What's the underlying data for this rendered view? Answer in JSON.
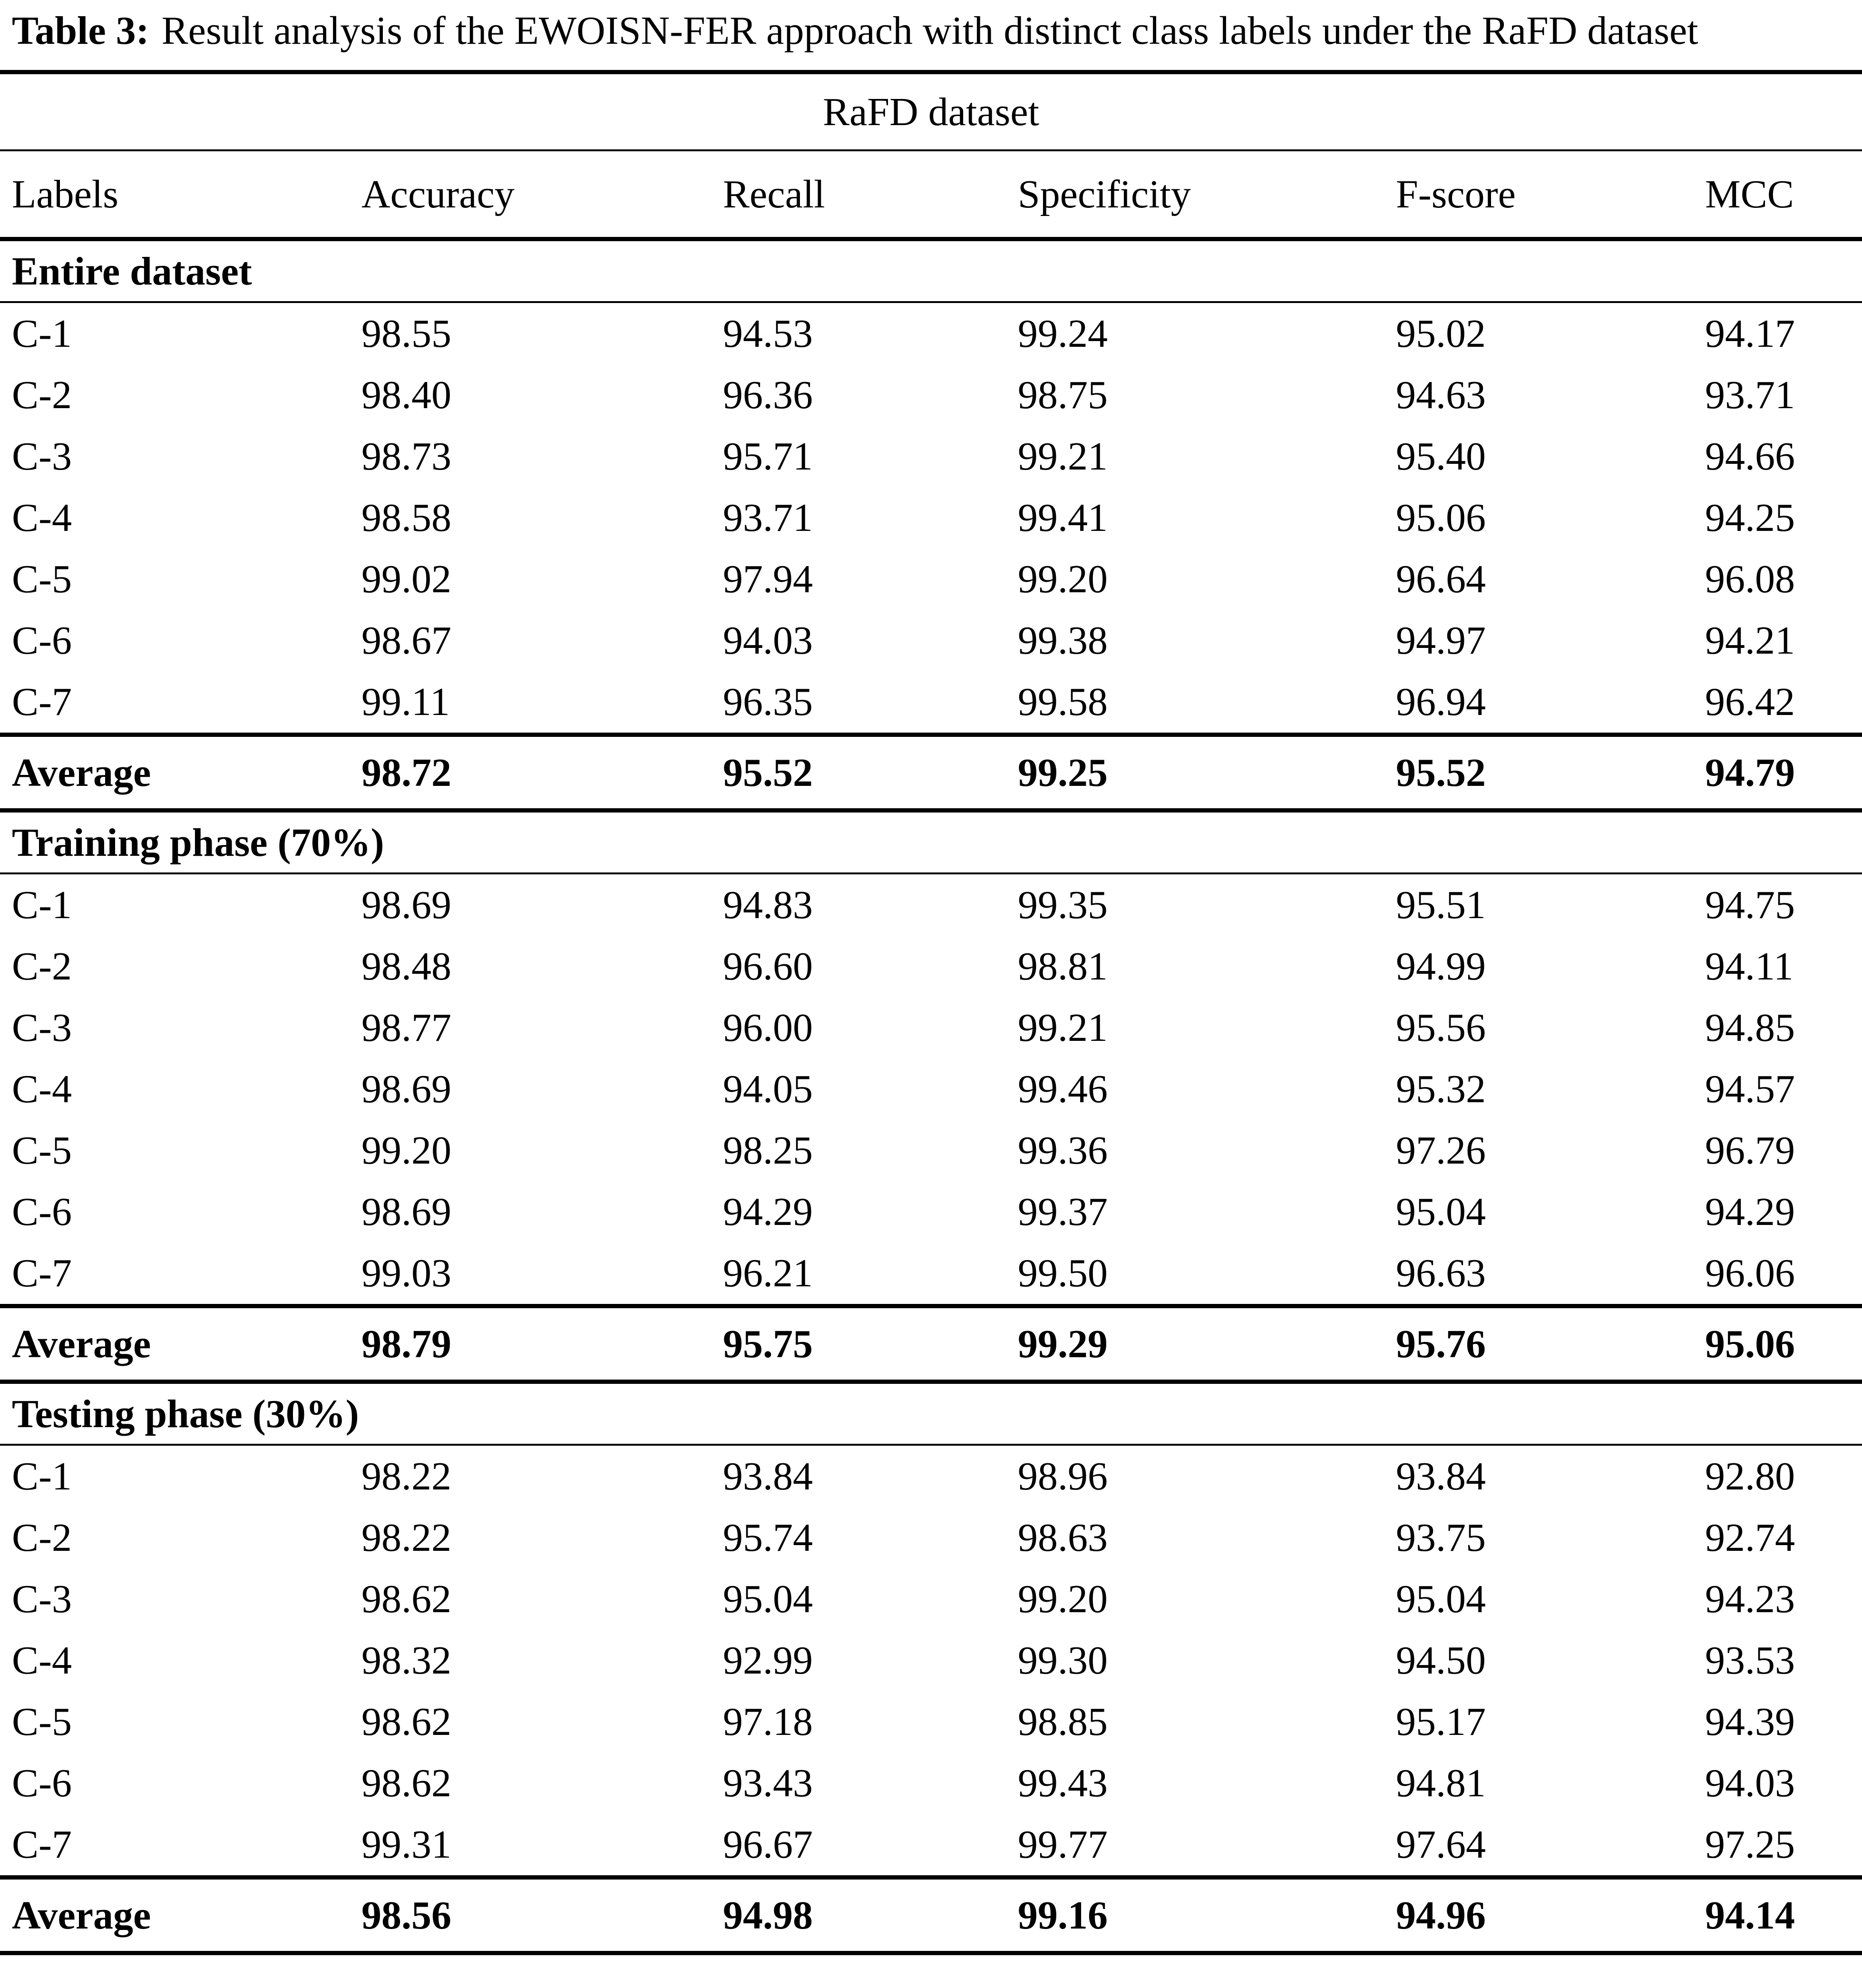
{
  "title": {
    "label": "Table 3:",
    "text": "Result analysis of the EWOISN-FER approach with distinct class labels under the RaFD dataset"
  },
  "table": {
    "dataset_header": "RaFD dataset",
    "columns": [
      "Labels",
      "Accuracy",
      "Recall",
      "Specificity",
      "F-score",
      "MCC"
    ],
    "sections": [
      {
        "name": "Entire dataset",
        "rows": [
          {
            "label": "C-1",
            "values": [
              "98.55",
              "94.53",
              "99.24",
              "95.02",
              "94.17"
            ]
          },
          {
            "label": "C-2",
            "values": [
              "98.40",
              "96.36",
              "98.75",
              "94.63",
              "93.71"
            ]
          },
          {
            "label": "C-3",
            "values": [
              "98.73",
              "95.71",
              "99.21",
              "95.40",
              "94.66"
            ]
          },
          {
            "label": "C-4",
            "values": [
              "98.58",
              "93.71",
              "99.41",
              "95.06",
              "94.25"
            ]
          },
          {
            "label": "C-5",
            "values": [
              "99.02",
              "97.94",
              "99.20",
              "96.64",
              "96.08"
            ]
          },
          {
            "label": "C-6",
            "values": [
              "98.67",
              "94.03",
              "99.38",
              "94.97",
              "94.21"
            ]
          },
          {
            "label": "C-7",
            "values": [
              "99.11",
              "96.35",
              "99.58",
              "96.94",
              "96.42"
            ]
          }
        ],
        "average": {
          "label": "Average",
          "values": [
            "98.72",
            "95.52",
            "99.25",
            "95.52",
            "94.79"
          ]
        }
      },
      {
        "name": "Training phase (70%)",
        "rows": [
          {
            "label": "C-1",
            "values": [
              "98.69",
              "94.83",
              "99.35",
              "95.51",
              "94.75"
            ]
          },
          {
            "label": "C-2",
            "values": [
              "98.48",
              "96.60",
              "98.81",
              "94.99",
              "94.11"
            ]
          },
          {
            "label": "C-3",
            "values": [
              "98.77",
              "96.00",
              "99.21",
              "95.56",
              "94.85"
            ]
          },
          {
            "label": "C-4",
            "values": [
              "98.69",
              "94.05",
              "99.46",
              "95.32",
              "94.57"
            ]
          },
          {
            "label": "C-5",
            "values": [
              "99.20",
              "98.25",
              "99.36",
              "97.26",
              "96.79"
            ]
          },
          {
            "label": "C-6",
            "values": [
              "98.69",
              "94.29",
              "99.37",
              "95.04",
              "94.29"
            ]
          },
          {
            "label": "C-7",
            "values": [
              "99.03",
              "96.21",
              "99.50",
              "96.63",
              "96.06"
            ]
          }
        ],
        "average": {
          "label": "Average",
          "values": [
            "98.79",
            "95.75",
            "99.29",
            "95.76",
            "95.06"
          ]
        }
      },
      {
        "name": "Testing phase (30%)",
        "rows": [
          {
            "label": "C-1",
            "values": [
              "98.22",
              "93.84",
              "98.96",
              "93.84",
              "92.80"
            ]
          },
          {
            "label": "C-2",
            "values": [
              "98.22",
              "95.74",
              "98.63",
              "93.75",
              "92.74"
            ]
          },
          {
            "label": "C-3",
            "values": [
              "98.62",
              "95.04",
              "99.20",
              "95.04",
              "94.23"
            ]
          },
          {
            "label": "C-4",
            "values": [
              "98.32",
              "92.99",
              "99.30",
              "94.50",
              "93.53"
            ]
          },
          {
            "label": "C-5",
            "values": [
              "98.62",
              "97.18",
              "98.85",
              "95.17",
              "94.39"
            ]
          },
          {
            "label": "C-6",
            "values": [
              "98.62",
              "93.43",
              "99.43",
              "94.81",
              "94.03"
            ]
          },
          {
            "label": "C-7",
            "values": [
              "99.31",
              "96.67",
              "99.77",
              "97.64",
              "97.25"
            ]
          }
        ],
        "average": {
          "label": "Average",
          "values": [
            "98.56",
            "94.98",
            "99.16",
            "94.96",
            "94.14"
          ]
        }
      }
    ]
  }
}
